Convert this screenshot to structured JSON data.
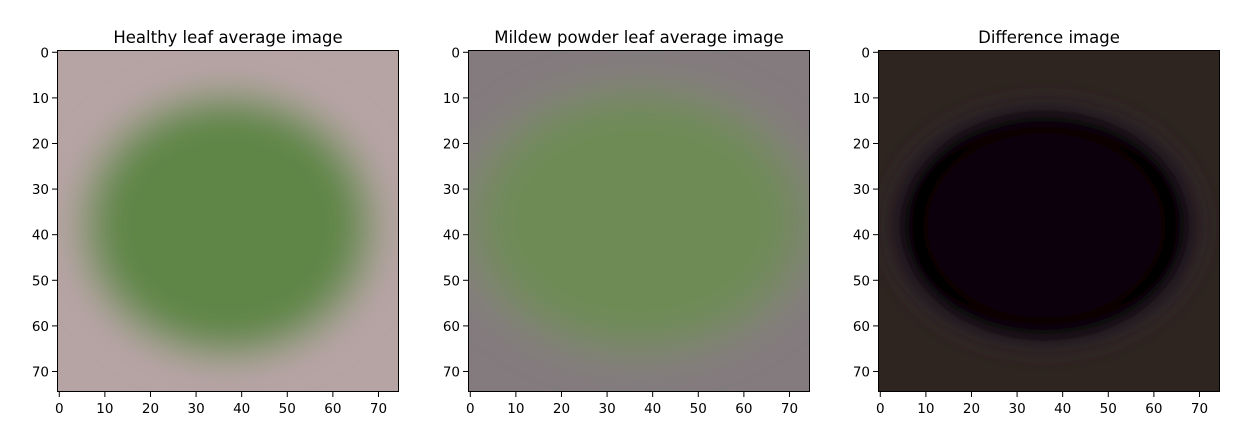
{
  "chart_data": [
    {
      "type": "heatmap",
      "title": "Healthy leaf average image",
      "xlabel": "",
      "ylabel": "",
      "xlim": [
        -0.5,
        74.5
      ],
      "ylim": [
        74.5,
        -0.5
      ],
      "xticks": [
        0,
        10,
        20,
        30,
        40,
        50,
        60,
        70
      ],
      "yticks": [
        0,
        10,
        20,
        30,
        40,
        50,
        60,
        70
      ],
      "grid": false,
      "image": {
        "shape": "ellipse",
        "center": [
          37,
          38
        ],
        "radius": [
          30,
          27
        ],
        "inner_color": "#5f8647",
        "outer_color": "#b7a6a5",
        "background_color": "#b6a3a4"
      }
    },
    {
      "type": "heatmap",
      "title": "Mildew powder leaf average image",
      "xlabel": "",
      "ylabel": "",
      "xlim": [
        -0.5,
        74.5
      ],
      "ylim": [
        74.5,
        -0.5
      ],
      "xticks": [
        0,
        10,
        20,
        30,
        40,
        50,
        60,
        70
      ],
      "yticks": [
        0,
        10,
        20,
        30,
        40,
        50,
        60,
        70
      ],
      "grid": false,
      "image": {
        "shape": "ellipse",
        "center": [
          37,
          37
        ],
        "radius": [
          35,
          27
        ],
        "inner_color": "#6e8b56",
        "outer_color": "#86817d",
        "background_color": "#837b7e"
      }
    },
    {
      "type": "heatmap",
      "title": "Difference image",
      "xlabel": "",
      "ylabel": "",
      "xlim": [
        -0.5,
        74.5
      ],
      "ylim": [
        74.5,
        -0.5
      ],
      "xticks": [
        0,
        10,
        20,
        30,
        40,
        50,
        60,
        70
      ],
      "yticks": [
        0,
        10,
        20,
        30,
        40,
        50,
        60,
        70
      ],
      "grid": false,
      "image": {
        "shape": "ring",
        "center": [
          36,
          38
        ],
        "radius": [
          28,
          22
        ],
        "inner_color": "#0e0310",
        "outer_color": "#302522",
        "background_color": "#2e2520",
        "ring_color": "#050603",
        "rim_color": "#3d2c3f"
      }
    }
  ]
}
